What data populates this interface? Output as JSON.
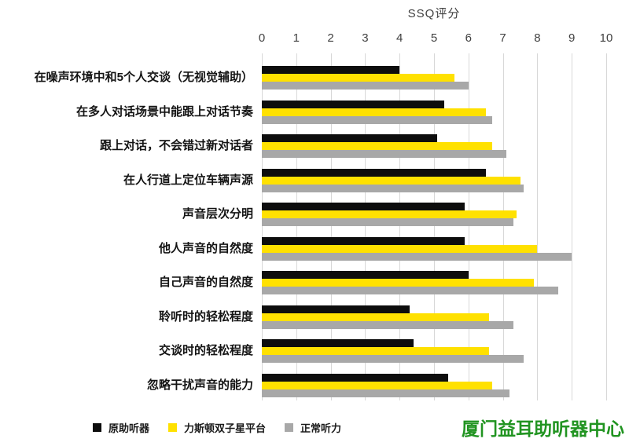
{
  "chart_data": {
    "type": "bar",
    "orientation": "horizontal",
    "title": "SSQ评分",
    "xlabel": "",
    "ylabel": "",
    "xlim": [
      0,
      10
    ],
    "xticks": [
      0,
      1,
      2,
      3,
      4,
      5,
      6,
      7,
      8,
      9,
      10
    ],
    "grid": true,
    "legend_position": "bottom",
    "categories": [
      "在噪声环境中和5个人交谈（无视觉辅助）",
      "在多人对话场景中能跟上对话节奏",
      "跟上对话，不会错过新对话者",
      "在人行道上定位车辆声源",
      "声音层次分明",
      "他人声音的自然度",
      "自己声音的自然度",
      "聆听时的轻松程度",
      "交谈时的轻松程度",
      "忽略干扰声音的能力"
    ],
    "series": [
      {
        "name": "原助听器",
        "color": "#0d0d0d",
        "values": [
          4.0,
          5.3,
          5.1,
          6.5,
          5.9,
          5.9,
          6.0,
          4.3,
          4.4,
          5.4
        ]
      },
      {
        "name": "力斯顿双子星平台",
        "color": "#ffe100",
        "values": [
          5.6,
          6.5,
          6.7,
          7.5,
          7.4,
          8.0,
          7.9,
          6.6,
          6.6,
          6.7
        ]
      },
      {
        "name": "正常听力",
        "color": "#a8a8a8",
        "values": [
          6.0,
          6.7,
          7.1,
          7.6,
          7.3,
          9.0,
          8.6,
          7.3,
          7.6,
          7.2
        ]
      }
    ],
    "colors": {
      "gridline": "#d8d8d8",
      "axis_text": "#3f3f3f"
    }
  },
  "watermark": {
    "text": "厦门益耳助听器中心",
    "color": "#219421"
  }
}
